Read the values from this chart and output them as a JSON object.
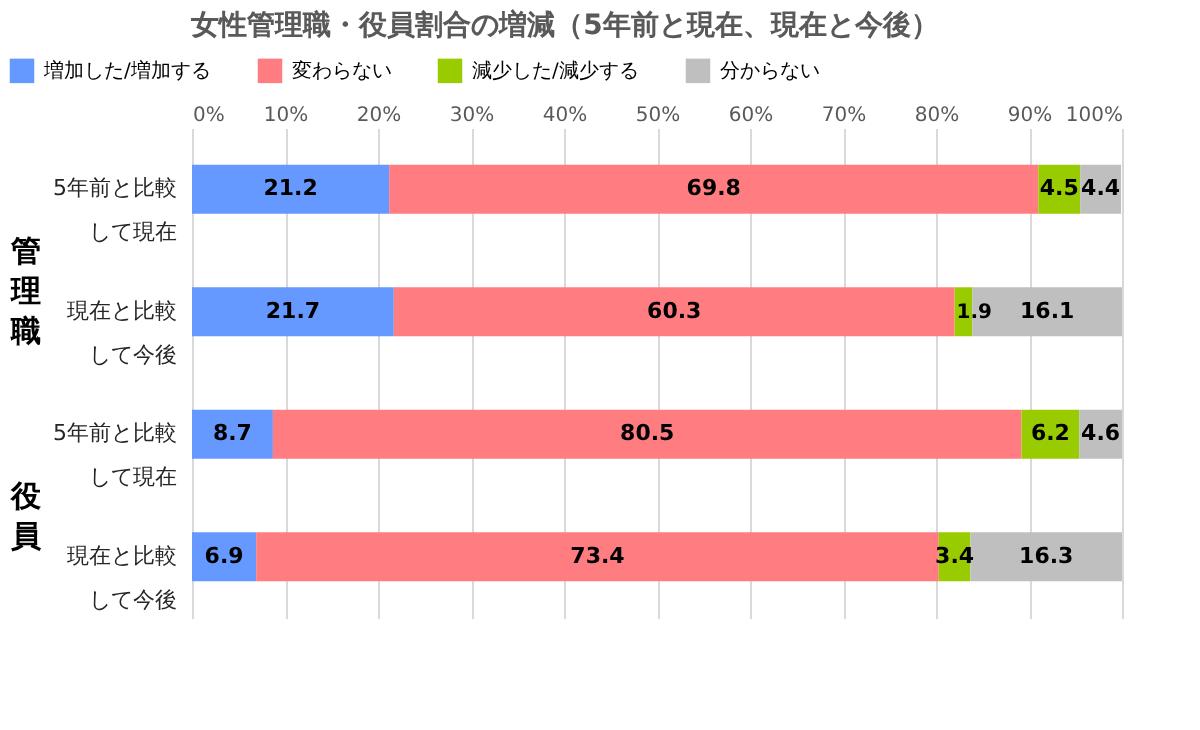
{
  "chart_data": {
    "type": "bar",
    "orientation": "horizontal",
    "stacked": true,
    "title": "女性管理職・役員割合の増減（5年前と現在、現在と今後）",
    "categories": [
      "5年前と比較して現在",
      "現在と比較して今後",
      "5年前と比較して現在",
      "現在と比較して今後"
    ],
    "series": [
      {
        "name": "増加した/増加する",
        "color": "#6699ff",
        "values": [
          21.2,
          21.7,
          8.7,
          6.9
        ]
      },
      {
        "name": "変わらない",
        "color": "#ff7c80",
        "values": [
          69.8,
          60.3,
          80.5,
          73.4
        ]
      },
      {
        "name": "減少した/減少する",
        "color": "#99cc00",
        "values": [
          4.5,
          1.9,
          6.2,
          3.4
        ]
      },
      {
        "name": "分からない",
        "color": "#bfbfbf",
        "values": [
          4.4,
          16.1,
          4.6,
          16.3
        ]
      }
    ],
    "xlim": [
      0,
      100
    ],
    "xticks": [
      {
        "value": 0,
        "label": "0%"
      },
      {
        "value": 10,
        "label": "10%"
      },
      {
        "value": 20,
        "label": "20%"
      },
      {
        "value": 30,
        "label": "30%"
      },
      {
        "value": 40,
        "label": "40%"
      },
      {
        "value": 50,
        "label": "50%"
      },
      {
        "value": 60,
        "label": "60%"
      },
      {
        "value": 70,
        "label": "70%"
      },
      {
        "value": 80,
        "label": "80%"
      },
      {
        "value": 90,
        "label": "90%"
      },
      {
        "value": 100,
        "label": "100%"
      }
    ],
    "annotations": [
      "管理職",
      "役員"
    ],
    "data_labels": true,
    "grid": "x",
    "legend": "top"
  }
}
